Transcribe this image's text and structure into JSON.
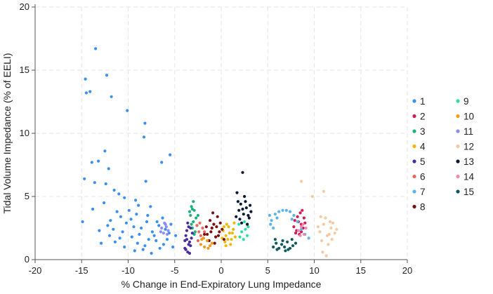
{
  "chart_data": {
    "type": "scatter",
    "title": "",
    "xlabel": "% Change in End-Expiratory Lung Impedance",
    "ylabel": "Tidal Volume Impedance (% of EELI)",
    "xlim": [
      -20,
      20
    ],
    "ylim": [
      0,
      20
    ],
    "xticks": [
      -20,
      -15,
      -10,
      -5,
      0,
      5,
      10,
      15,
      20
    ],
    "yticks": [
      0,
      5,
      10,
      15,
      20
    ],
    "grid": true,
    "legend_position": "right",
    "series": [
      {
        "name": "1",
        "color": "#3b8ff0",
        "points": [
          [
            -13.5,
            16.7
          ],
          [
            -14.6,
            14.3
          ],
          [
            -14.5,
            13.2
          ],
          [
            -14.1,
            13.3
          ],
          [
            -12.3,
            14.6
          ],
          [
            -11.8,
            12.9
          ],
          [
            -10.1,
            11.8
          ],
          [
            -8.2,
            10.8
          ],
          [
            -8.3,
            9.7
          ],
          [
            -12.5,
            8.6
          ],
          [
            -13.9,
            7.7
          ],
          [
            -13.2,
            7.8
          ],
          [
            -12.1,
            7.2
          ],
          [
            -14.7,
            6.4
          ],
          [
            -13.6,
            6.1
          ],
          [
            -12.4,
            6.0
          ],
          [
            -11.5,
            5.5
          ],
          [
            -11.0,
            5.2
          ],
          [
            -10.4,
            4.9
          ],
          [
            -8.1,
            6.2
          ],
          [
            -9.2,
            4.7
          ],
          [
            -7.6,
            4.2
          ],
          [
            -5.5,
            8.3
          ],
          [
            -6.4,
            7.7
          ],
          [
            -14.9,
            3.0
          ],
          [
            -13.8,
            4.0
          ],
          [
            -12.6,
            4.5
          ],
          [
            -11.2,
            3.8
          ],
          [
            -10.8,
            3.4
          ],
          [
            -10.2,
            2.9
          ],
          [
            -9.7,
            3.2
          ],
          [
            -9.1,
            3.6
          ],
          [
            -8.6,
            2.5
          ],
          [
            -8.0,
            3.0
          ],
          [
            -7.4,
            2.2
          ],
          [
            -7.0,
            1.5
          ],
          [
            -6.7,
            2.7
          ],
          [
            -6.2,
            1.2
          ],
          [
            -5.6,
            2.1
          ],
          [
            -5.2,
            1.0
          ],
          [
            -9.6,
            1.8
          ],
          [
            -9.0,
            1.3
          ],
          [
            -8.4,
            0.8
          ],
          [
            -7.8,
            1.6
          ],
          [
            -11.6,
            2.4
          ],
          [
            -12.9,
            1.3
          ],
          [
            -10.6,
            2.2
          ],
          [
            -9.4,
            2.6
          ],
          [
            -8.8,
            2.0
          ],
          [
            -7.2,
            1.9
          ],
          [
            -6.6,
            0.9
          ],
          [
            -6.0,
            2.4
          ],
          [
            -5.8,
            1.6
          ],
          [
            -10.9,
            1.7
          ],
          [
            -11.9,
            3.1
          ],
          [
            -12.2,
            2.7
          ],
          [
            -13.1,
            2.3
          ],
          [
            -9.9,
            3.9
          ],
          [
            -8.9,
            4.3
          ],
          [
            -7.9,
            3.5
          ],
          [
            -6.9,
            3.0
          ],
          [
            -6.3,
            3.3
          ],
          [
            -4.9,
            1.9
          ],
          [
            -5.4,
            2.8
          ],
          [
            -7.5,
            0.5
          ],
          [
            -8.2,
            1.1
          ],
          [
            -9.3,
            0.7
          ],
          [
            -10.4,
            1.0
          ],
          [
            -11.4,
            1.4
          ],
          [
            -12.0,
            1.9
          ]
        ]
      },
      {
        "name": "2",
        "color": "#d6175a",
        "points": [
          [
            7.8,
            2.6
          ],
          [
            8.1,
            2.3
          ],
          [
            8.3,
            3.0
          ],
          [
            8.6,
            2.8
          ],
          [
            8.2,
            3.4
          ],
          [
            8.8,
            2.5
          ],
          [
            8.5,
            3.7
          ],
          [
            8.0,
            2.1
          ],
          [
            8.9,
            3.3
          ],
          [
            8.4,
            2.0
          ],
          [
            9.0,
            2.9
          ],
          [
            8.7,
            3.9
          ],
          [
            7.9,
            3.1
          ],
          [
            8.6,
            2.2
          ]
        ]
      },
      {
        "name": "3",
        "color": "#1fb07a",
        "points": [
          [
            -3.0,
            4.6
          ],
          [
            -3.2,
            4.2
          ],
          [
            -2.9,
            3.9
          ],
          [
            -3.3,
            3.5
          ],
          [
            -2.7,
            3.3
          ],
          [
            -3.0,
            3.0
          ],
          [
            -2.6,
            2.7
          ],
          [
            -3.1,
            2.5
          ],
          [
            -2.8,
            2.2
          ],
          [
            -3.4,
            3.8
          ],
          [
            -2.5,
            3.5
          ],
          [
            -3.2,
            2.8
          ],
          [
            -2.9,
            2.0
          ],
          [
            -3.1,
            4.0
          ]
        ]
      },
      {
        "name": "4",
        "color": "#f2b705",
        "points": [
          [
            0.2,
            2.3
          ],
          [
            0.5,
            1.9
          ],
          [
            0.8,
            2.6
          ],
          [
            1.1,
            1.6
          ],
          [
            0.4,
            1.4
          ],
          [
            0.9,
            2.1
          ],
          [
            1.3,
            2.4
          ],
          [
            0.6,
            2.8
          ],
          [
            1.5,
            1.8
          ],
          [
            0.1,
            1.7
          ],
          [
            1.0,
            1.2
          ],
          [
            0.7,
            1.6
          ],
          [
            1.4,
            2.9
          ],
          [
            0.3,
            2.6
          ],
          [
            1.2,
            2.1
          ],
          [
            0.5,
            1.1
          ]
        ]
      },
      {
        "name": "5",
        "color": "#4a2c9a",
        "points": [
          [
            -3.5,
            2.6
          ],
          [
            -3.8,
            1.9
          ],
          [
            -3.4,
            1.4
          ],
          [
            -3.9,
            0.9
          ],
          [
            -3.6,
            0.6
          ],
          [
            -3.3,
            1.1
          ],
          [
            -3.7,
            2.3
          ],
          [
            -3.2,
            1.7
          ],
          [
            -3.9,
            1.5
          ],
          [
            -3.4,
            0.5
          ],
          [
            -3.6,
            2.9
          ],
          [
            -3.1,
            2.1
          ],
          [
            -3.8,
            0.8
          ],
          [
            -3.5,
            1.2
          ],
          [
            -3.3,
            2.5
          ],
          [
            -3.7,
            1.6
          ]
        ]
      },
      {
        "name": "6",
        "color": "#e8685a",
        "points": [
          [
            -2.6,
            2.7
          ],
          [
            -2.4,
            2.2
          ],
          [
            -2.2,
            1.9
          ],
          [
            -2.0,
            2.5
          ],
          [
            -1.9,
            1.7
          ],
          [
            -2.5,
            1.5
          ],
          [
            -2.3,
            2.9
          ],
          [
            -1.8,
            2.2
          ]
        ]
      },
      {
        "name": "7",
        "color": "#5bb4e8",
        "points": [
          [
            5.2,
            3.5
          ],
          [
            5.4,
            3.1
          ],
          [
            5.8,
            3.6
          ],
          [
            6.2,
            3.8
          ],
          [
            6.6,
            3.9
          ],
          [
            7.0,
            3.9
          ],
          [
            7.4,
            3.8
          ],
          [
            7.8,
            3.5
          ],
          [
            8.2,
            3.0
          ],
          [
            8.6,
            2.4
          ],
          [
            9.0,
            2.0
          ],
          [
            9.4,
            1.7
          ],
          [
            5.3,
            2.8
          ],
          [
            5.6,
            2.5
          ],
          [
            7.6,
            3.2
          ],
          [
            6.0,
            3.3
          ]
        ]
      },
      {
        "name": "8",
        "color": "#7a1010",
        "points": [
          [
            -1.5,
            2.0
          ],
          [
            -1.0,
            2.5
          ],
          [
            -0.6,
            1.8
          ],
          [
            -0.2,
            2.2
          ],
          [
            0.3,
            1.6
          ],
          [
            -1.2,
            3.1
          ],
          [
            -0.8,
            2.8
          ],
          [
            -0.4,
            3.4
          ],
          [
            -1.6,
            2.6
          ],
          [
            -0.1,
            2.9
          ],
          [
            -0.7,
            1.3
          ],
          [
            -1.3,
            1.5
          ],
          [
            0.1,
            2.4
          ],
          [
            -1.8,
            2.0
          ],
          [
            -0.9,
            3.7
          ],
          [
            -0.3,
            1.9
          ],
          [
            -1.1,
            2.2
          ],
          [
            -0.5,
            2.6
          ]
        ]
      },
      {
        "name": "9",
        "color": "#2ee0a0",
        "points": [
          [
            1.9,
            2.8
          ],
          [
            2.2,
            2.2
          ],
          [
            2.5,
            3.0
          ],
          [
            2.8,
            1.9
          ],
          [
            2.4,
            1.6
          ],
          [
            2.9,
            2.6
          ],
          [
            2.0,
            1.8
          ],
          [
            2.6,
            2.4
          ]
        ]
      },
      {
        "name": "10",
        "color": "#f59a1a",
        "points": [
          [
            -2.2,
            1.2
          ],
          [
            -1.8,
            1.0
          ],
          [
            -1.5,
            1.5
          ],
          [
            -1.2,
            1.1
          ],
          [
            -1.9,
            1.7
          ],
          [
            -1.4,
            0.9
          ],
          [
            -1.0,
            1.3
          ],
          [
            -2.1,
            1.6
          ]
        ]
      },
      {
        "name": "11",
        "color": "#8a8ef0",
        "points": [
          [
            -6.4,
            2.5
          ],
          [
            -6.0,
            2.8
          ],
          [
            -5.7,
            2.3
          ],
          [
            -6.2,
            2.1
          ],
          [
            -5.9,
            2.6
          ],
          [
            -6.5,
            2.2
          ],
          [
            -5.8,
            2.0
          ],
          [
            -6.1,
            2.9
          ]
        ]
      },
      {
        "name": "12",
        "color": "#f7c9a0",
        "points": [
          [
            10.6,
            2.2
          ],
          [
            11.0,
            2.8
          ],
          [
            11.4,
            1.9
          ],
          [
            11.8,
            2.5
          ],
          [
            12.2,
            2.1
          ],
          [
            10.8,
            1.5
          ],
          [
            11.2,
            3.3
          ],
          [
            11.6,
            2.0
          ],
          [
            12.0,
            2.9
          ],
          [
            10.4,
            2.6
          ],
          [
            11.5,
            1.2
          ],
          [
            10.9,
            0.6
          ],
          [
            11.3,
            0.3
          ],
          [
            11.0,
            5.4
          ],
          [
            9.8,
            5.0
          ],
          [
            8.6,
            6.2
          ],
          [
            12.4,
            2.4
          ],
          [
            11.7,
            3.0
          ],
          [
            10.7,
            3.4
          ],
          [
            11.9,
            1.6
          ]
        ]
      },
      {
        "name": "13",
        "color": "#0b1a33",
        "points": [
          [
            1.6,
            3.4
          ],
          [
            1.9,
            3.9
          ],
          [
            2.1,
            4.4
          ],
          [
            2.4,
            3.6
          ],
          [
            2.7,
            4.1
          ],
          [
            3.0,
            3.3
          ],
          [
            2.2,
            2.9
          ],
          [
            2.8,
            2.8
          ],
          [
            3.2,
            3.8
          ],
          [
            1.8,
            4.6
          ],
          [
            2.5,
            5.0
          ],
          [
            1.7,
            5.3
          ],
          [
            2.3,
            4.0
          ],
          [
            2.9,
            3.5
          ],
          [
            2.0,
            3.2
          ],
          [
            2.6,
            4.6
          ],
          [
            2.3,
            6.9
          ],
          [
            3.1,
            4.3
          ]
        ]
      },
      {
        "name": "14",
        "color": "#f08aa8",
        "points": [
          [
            8.3,
            2.3
          ],
          [
            8.6,
            2.6
          ],
          [
            8.9,
            2.0
          ],
          [
            9.1,
            2.5
          ],
          [
            8.5,
            1.9
          ],
          [
            8.8,
            2.8
          ]
        ]
      },
      {
        "name": "15",
        "color": "#0e5a5a",
        "points": [
          [
            5.6,
            1.0
          ],
          [
            5.9,
            1.3
          ],
          [
            6.2,
            0.9
          ],
          [
            6.5,
            1.2
          ],
          [
            6.8,
            1.0
          ],
          [
            7.1,
            1.4
          ],
          [
            7.4,
            0.9
          ],
          [
            7.7,
            1.1
          ],
          [
            8.0,
            1.3
          ],
          [
            6.0,
            0.8
          ],
          [
            6.6,
            1.5
          ],
          [
            7.2,
            0.8
          ],
          [
            5.8,
            1.6
          ],
          [
            7.6,
            1.6
          ],
          [
            6.9,
            0.7
          ]
        ]
      }
    ]
  }
}
